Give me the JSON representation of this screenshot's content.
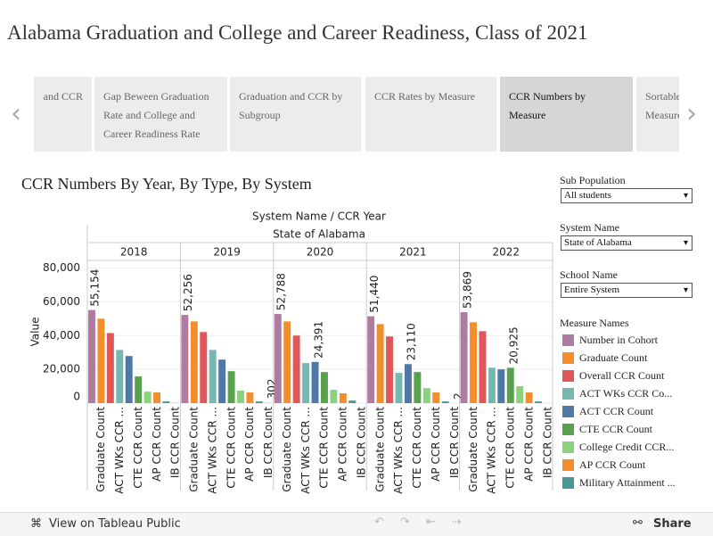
{
  "header": {
    "title": "Alabama Graduation and College and Career Readiness, Class of 2021"
  },
  "tabs": [
    "and CCR",
    "Gap Beween Graduation Rate and College and Career Readiness Rate",
    "Graduation and CCR by Subgroup",
    "CCR Rates by Measure",
    "CCR Numbers by Measure",
    "Sortable Measure"
  ],
  "filters": [
    {
      "label": "Sub Population",
      "value": "All students"
    },
    {
      "label": "System Name",
      "value": "State of Alabama"
    },
    {
      "label": "School Name",
      "value": "Entire System"
    }
  ],
  "toolbar": {
    "view": "View on Tableau Public",
    "share": "Share"
  },
  "chart_data": {
    "type": "bar",
    "title": "CCR Numbers By Year, By Type,  By System",
    "header_title": "System Name  /  CCR Year",
    "group": "State of Alabama",
    "ylabel": "Value",
    "ylim": [
      0,
      84000
    ],
    "yticks": [
      0,
      {
        "value": 20000,
        "label": "20,000"
      },
      {
        "value": 40000,
        "label": "40,000"
      },
      {
        "value": 60000,
        "label": "60,000"
      },
      {
        "value": 80000,
        "label": "80,000"
      }
    ],
    "grid": true,
    "categories": [
      null,
      "Graduate Count",
      null,
      "ACT WKs CCR ...",
      null,
      "CTE CCR Count",
      null,
      "AP CCR Count",
      null,
      "IB CCR Count"
    ],
    "legend_title": "Measure Names",
    "legend": [
      "Number in Cohort",
      "Graduate Count",
      "Overall CCR Count",
      "ACT WKs CCR Co...",
      "ACT CCR Count",
      "CTE CCR Count",
      "College Credit CCR...",
      "AP CCR Count",
      "Military Attainment ...",
      null
    ],
    "colors": [
      "#b07aa1",
      "#f28e2b",
      "#e15759",
      "#76b7b2",
      "#4e79a7",
      "#59a14f",
      "#8cd17d",
      "#f28e2b",
      "#499894",
      "#f1ce63"
    ],
    "panels": [
      {
        "year": "2018",
        "values": [
          55154,
          50000,
          41500,
          31500,
          27900,
          15800,
          6800,
          6300,
          1000,
          300
        ],
        "value_labels": [
          "55,154",
          null,
          null,
          null,
          null,
          null,
          null,
          null,
          null,
          null
        ]
      },
      {
        "year": "2019",
        "values": [
          52256,
          48400,
          42100,
          31500,
          25800,
          18900,
          7400,
          6300,
          1000,
          302
        ],
        "value_labels": [
          "52,256",
          null,
          null,
          null,
          null,
          null,
          null,
          null,
          null,
          "302"
        ]
      },
      {
        "year": "2020",
        "values": [
          52788,
          48400,
          40000,
          23700,
          24391,
          18400,
          7900,
          5800,
          1500,
          50
        ],
        "value_labels": [
          "52,788",
          null,
          null,
          null,
          "24,391",
          null,
          null,
          null,
          null,
          null
        ]
      },
      {
        "year": "2021",
        "values": [
          51440,
          46800,
          39500,
          17900,
          23110,
          18400,
          8900,
          6300,
          1000,
          2
        ],
        "value_labels": [
          "51,440",
          null,
          null,
          null,
          "23,110",
          null,
          null,
          null,
          null,
          "2"
        ]
      },
      {
        "year": "2022",
        "values": [
          53869,
          47900,
          42600,
          21000,
          20000,
          20925,
          10000,
          6300,
          1000,
          100
        ],
        "value_labels": [
          "53,869",
          null,
          null,
          null,
          null,
          "20,925",
          null,
          null,
          null,
          null
        ]
      }
    ]
  }
}
